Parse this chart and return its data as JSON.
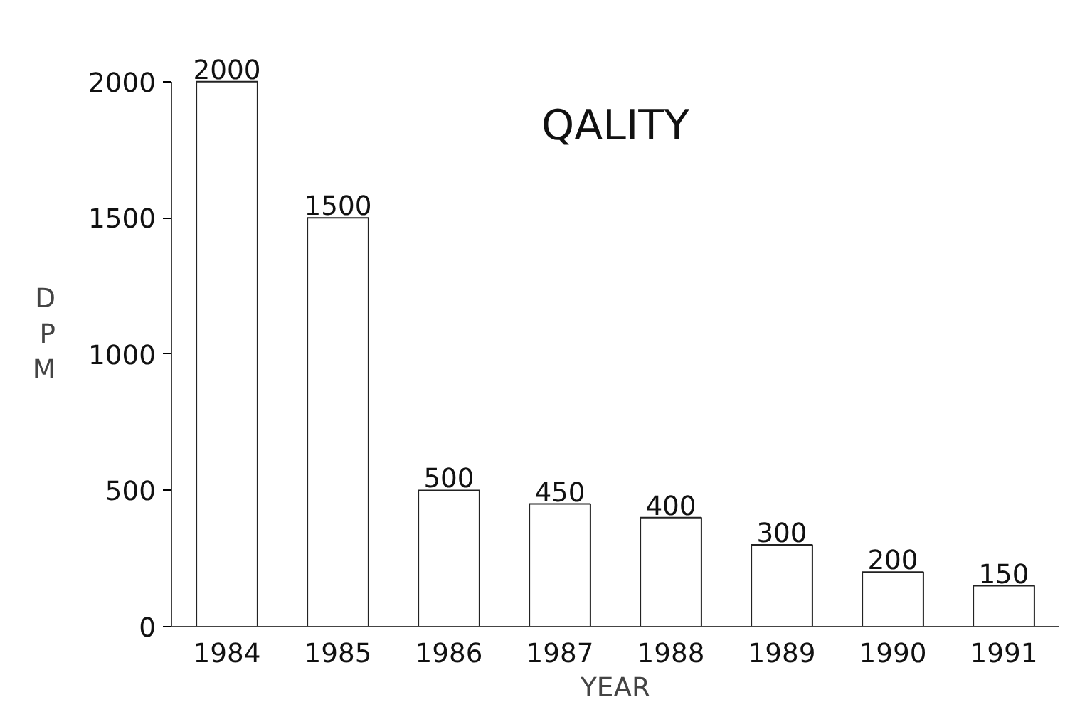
{
  "chart_data": {
    "type": "bar",
    "title": "QALITY",
    "xlabel": "YEAR",
    "ylabel": "DPM",
    "categories": [
      "1984",
      "1985",
      "1986",
      "1987",
      "1988",
      "1989",
      "1990",
      "1991"
    ],
    "values": [
      2000,
      1500,
      500,
      450,
      400,
      300,
      200,
      150
    ],
    "color": "#ffffff",
    "ylim": [
      0,
      2000
    ],
    "yticks": [
      0,
      500,
      1000,
      1500,
      2000
    ],
    "grid": false,
    "data_labels": true
  }
}
